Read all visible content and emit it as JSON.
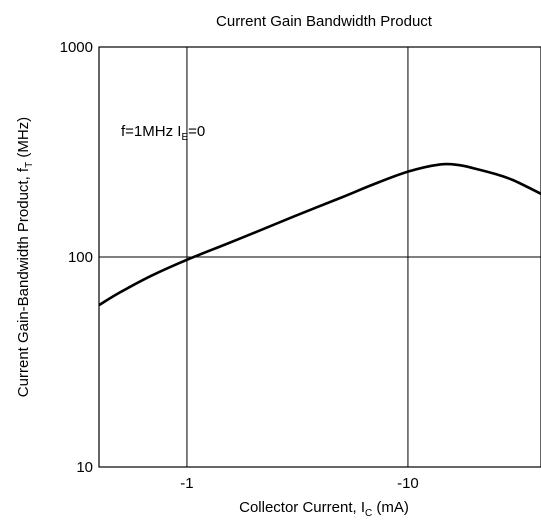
{
  "chart_data": {
    "type": "line",
    "title": "Current Gain Bandwidth Product",
    "xlabel": {
      "main": "Collector Current, I",
      "sub": "C",
      "unit": " (mA)"
    },
    "ylabel": {
      "main": "Current Gain-Bandwidth Product, f",
      "sub": "T",
      "unit": " (MHz)"
    },
    "x_scale": "log",
    "y_scale": "log",
    "x_direction": "negative values, magnitude increasing to the right",
    "xlim": [
      -0.4,
      -40
    ],
    "ylim": [
      10,
      1000
    ],
    "x_ticks": [
      {
        "value": -1,
        "label": "-1"
      },
      {
        "value": -10,
        "label": "-10"
      }
    ],
    "y_ticks": [
      {
        "value": 10,
        "label": "10"
      },
      {
        "value": 100,
        "label": "100"
      },
      {
        "value": 1000,
        "label": "1000"
      }
    ],
    "grid": true,
    "annotation": {
      "main": "f=1MHz I",
      "sub": "E",
      "rest": "=0"
    },
    "series": [
      {
        "color": "#000000",
        "x": [
          -0.4,
          -0.5,
          -0.7,
          -1.0,
          -1.5,
          -2,
          -3,
          -5,
          -7,
          -10,
          -14,
          -17,
          -20,
          -25,
          -30,
          -40
        ],
        "y": [
          59,
          68,
          82,
          97,
          115,
          130,
          155,
          192,
          222,
          255,
          276,
          274,
          264,
          248,
          232,
          200
        ]
      }
    ]
  }
}
